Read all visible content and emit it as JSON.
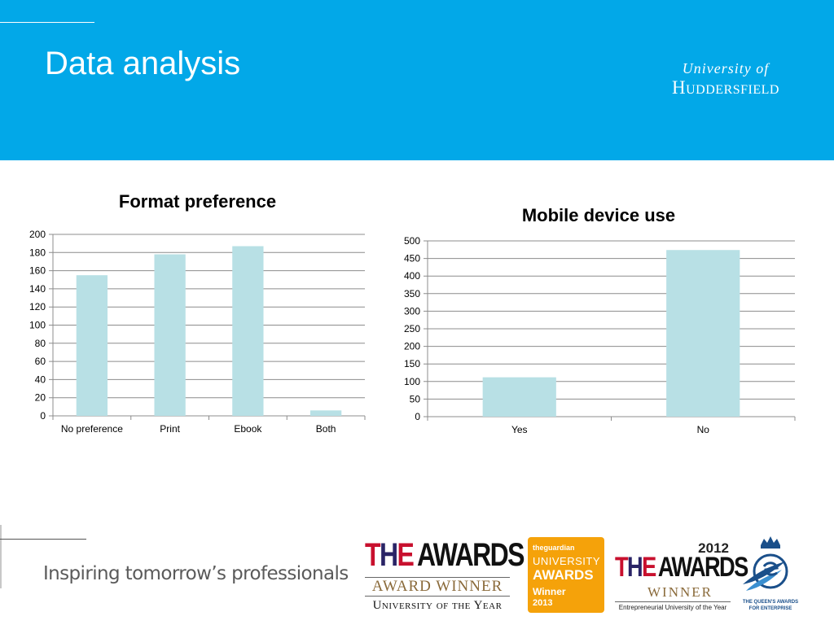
{
  "slide": {
    "title": "Data analysis",
    "tagline": "Inspiring tomorrow’s professionals"
  },
  "logo": {
    "line1": "University of",
    "line2": "Huddersfield"
  },
  "colors": {
    "header": "#02a8e8",
    "bar": "#b8e0e5",
    "grid": "#8c8c8c"
  },
  "chart_data": [
    {
      "type": "bar",
      "title": "Format preference",
      "categories": [
        "No preference",
        "Print",
        "Ebook",
        "Both"
      ],
      "values": [
        155,
        178,
        187,
        6
      ],
      "ylim": [
        0,
        200
      ],
      "yticks": [
        0,
        20,
        40,
        60,
        80,
        100,
        120,
        140,
        160,
        180,
        200
      ],
      "grid": true,
      "legend": "none"
    },
    {
      "type": "bar",
      "title": "Mobile device use",
      "categories": [
        "Yes",
        "No"
      ],
      "values": [
        112,
        474
      ],
      "ylim": [
        0,
        500
      ],
      "yticks": [
        0,
        50,
        100,
        150,
        200,
        250,
        300,
        350,
        400,
        450,
        500
      ],
      "grid": true,
      "legend": "none"
    }
  ],
  "awards": {
    "the": {
      "brand_t": "T",
      "brand_h": "H",
      "brand_e": "E",
      "awards": "AWARDS",
      "winner": "AWARD WINNER",
      "category": "University of the Year"
    },
    "guardian": {
      "brand": "theguardian",
      "line1": "UNIVERSITY",
      "line2": "AWARDS",
      "line3": "Winner",
      "year": "2013"
    },
    "the2012": {
      "year": "2012",
      "brand_t": "T",
      "brand_h": "H",
      "brand_e": "E",
      "awards": "AWARDS",
      "winner": "WINNER",
      "category": "Entrepreneurial University of the Year"
    },
    "queens": {
      "text": "THE QUEEN'S AWARDS FOR ENTERPRISE"
    }
  }
}
